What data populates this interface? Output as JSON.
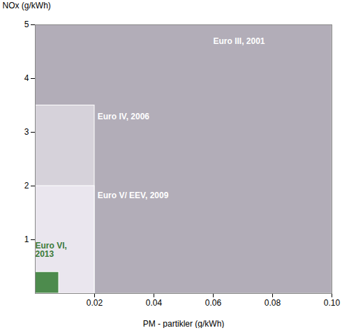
{
  "chart_data": {
    "type": "rect",
    "xlabel": "PM - partikler (g/kWh)",
    "ylabel": "NOx (g/kWh)",
    "xlim": [
      0,
      0.1
    ],
    "ylim": [
      0,
      5
    ],
    "xticks": [
      0.02,
      0.04,
      0.06,
      0.08,
      {
        "value": 0.1,
        "label": "0.10"
      }
    ],
    "yticks": [
      1,
      2,
      3,
      4,
      5
    ],
    "rectangles": [
      {
        "x": [
          0,
          0.1
        ],
        "y": [
          0,
          5
        ],
        "color": "#b2adb8",
        "edgecolor": "#cccccc"
      },
      {
        "x": [
          0,
          0.02
        ],
        "y": [
          0,
          3.5
        ],
        "color": "#d6d2da",
        "edgecolor": "white"
      },
      {
        "x": [
          0,
          0.02
        ],
        "y": [
          0,
          2.0
        ],
        "color": "#eae6ee",
        "edgecolor": "white"
      },
      {
        "x": [
          0,
          0.008
        ],
        "y": [
          0,
          0.4
        ],
        "color": "#4d8b4d",
        "edgecolor": "white"
      }
    ],
    "annotations": [
      {
        "text": "Euro III, 2001",
        "x": 0.06,
        "y": 4.75,
        "color": "white"
      },
      {
        "text": "Euro IV, 2006",
        "x": 0.021,
        "y": 3.35,
        "color": "white"
      },
      {
        "text": "Euro V/ EEV, 2009",
        "x": 0.021,
        "y": 1.88,
        "color": "white"
      },
      {
        "text": "Euro VI,\n2013",
        "x": 0.0,
        "y": 0.95,
        "color": "#3a7a3a"
      }
    ]
  }
}
